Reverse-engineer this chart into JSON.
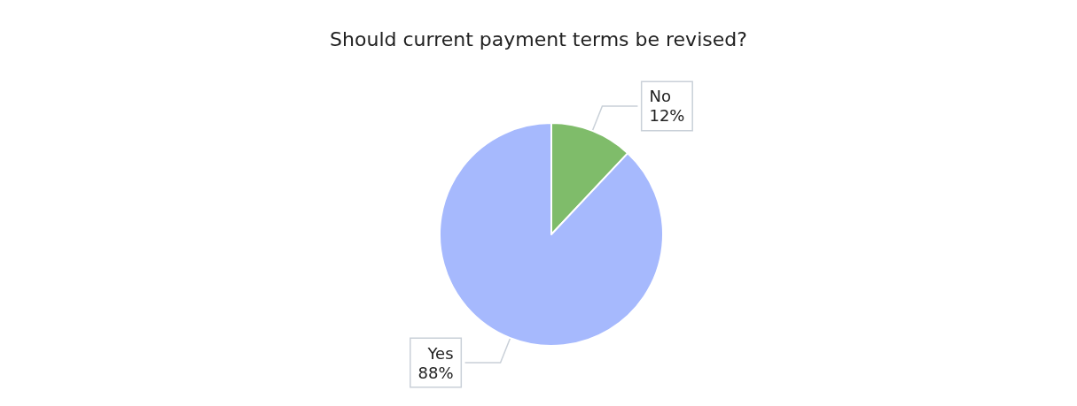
{
  "chart_data": {
    "type": "pie",
    "title": "Should current payment terms be revised?",
    "categories": [
      "No",
      "Yes"
    ],
    "values": [
      12,
      88
    ],
    "colors": [
      "#7fbc6a",
      "#a6b9fd"
    ],
    "value_labels": [
      "12%",
      "88%"
    ],
    "legend": false
  }
}
